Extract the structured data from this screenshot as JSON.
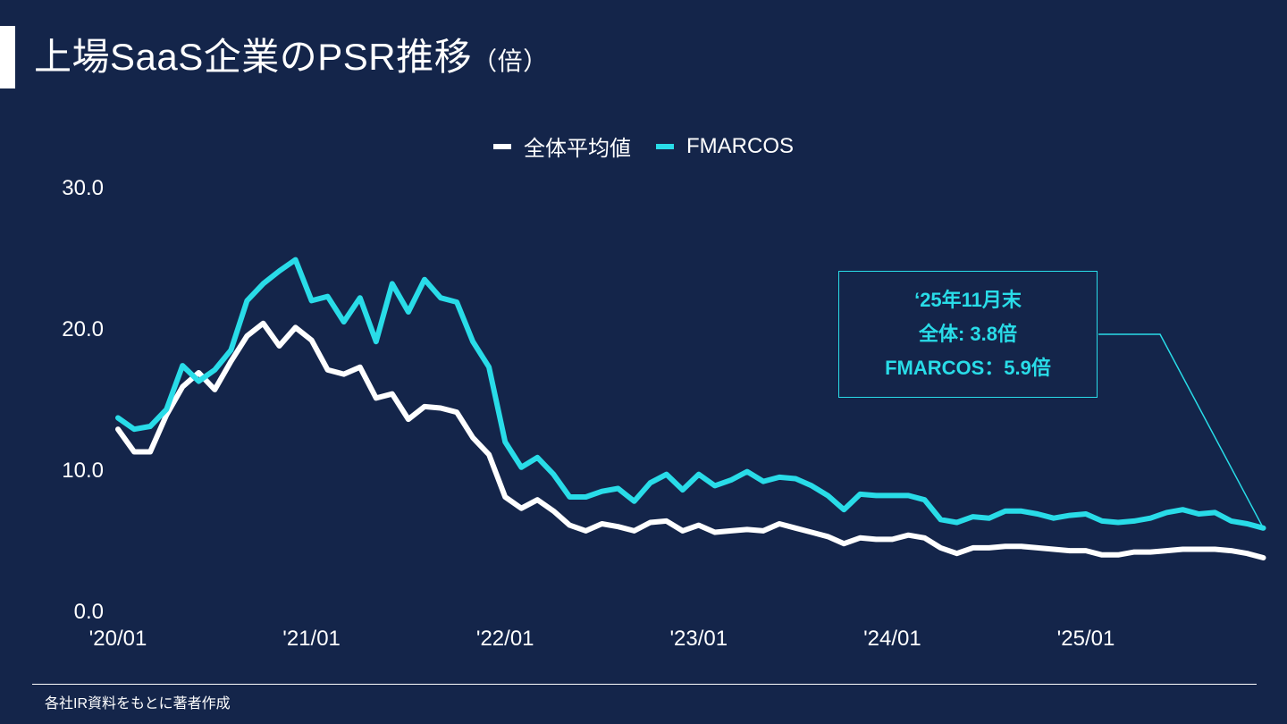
{
  "title": {
    "main": "上場SaaS企業のPSR推移",
    "unit": "（倍）"
  },
  "legend": [
    {
      "label": "全体平均値",
      "color": "#ffffff"
    },
    {
      "label": "FMARCOS",
      "color": "#29dce8"
    }
  ],
  "callout": {
    "line1": "‘25年11月末",
    "line2": "全体: 3.8倍",
    "line3": "FMARCOS：5.9倍"
  },
  "source": "各社IR資料をもとに著者作成",
  "chart_data": {
    "type": "line",
    "title": "上場SaaS企業のPSR推移",
    "ylim": [
      0,
      30
    ],
    "yticks": [
      0,
      10,
      20,
      30
    ],
    "ytick_labels": [
      "0.0",
      "10.0",
      "20.0",
      "30.0"
    ],
    "xtick_labels": [
      "'20/01",
      "'21/01",
      "'22/01",
      "'23/01",
      "'24/01",
      "'25/01"
    ],
    "x_start": "2020-01",
    "x_end": "2025-11",
    "grid": false,
    "legend_position": "top-center",
    "series": [
      {
        "name": "全体平均値",
        "color": "#ffffff",
        "values": [
          12.9,
          11.3,
          11.3,
          13.9,
          15.9,
          16.9,
          15.7,
          17.7,
          19.5,
          20.4,
          18.8,
          20.1,
          19.2,
          17.1,
          16.8,
          17.3,
          15.1,
          15.4,
          13.6,
          14.5,
          14.4,
          14.1,
          12.3,
          11.1,
          8.1,
          7.3,
          7.9,
          7.1,
          6.1,
          5.7,
          6.2,
          6.0,
          5.7,
          6.3,
          6.4,
          5.7,
          6.1,
          5.6,
          5.7,
          5.8,
          5.7,
          6.2,
          5.9,
          5.6,
          5.3,
          4.8,
          5.2,
          5.1,
          5.1,
          5.4,
          5.2,
          4.5,
          4.1,
          4.5,
          4.5,
          4.6,
          4.6,
          4.5,
          4.4,
          4.3,
          4.3,
          4.0,
          4.0,
          4.2,
          4.2,
          4.3,
          4.4,
          4.4,
          4.4,
          4.3,
          4.1,
          3.8
        ]
      },
      {
        "name": "FMARCOS",
        "color": "#29dce8",
        "values": [
          13.7,
          12.9,
          13.1,
          14.3,
          17.4,
          16.3,
          17.1,
          18.5,
          22.0,
          23.2,
          24.1,
          24.9,
          22.0,
          22.3,
          20.5,
          22.2,
          19.1,
          23.2,
          21.2,
          23.5,
          22.2,
          21.9,
          19.1,
          17.3,
          12.0,
          10.2,
          10.9,
          9.7,
          8.1,
          8.1,
          8.5,
          8.7,
          7.8,
          9.1,
          9.7,
          8.6,
          9.7,
          8.9,
          9.3,
          9.9,
          9.2,
          9.5,
          9.4,
          8.9,
          8.2,
          7.2,
          8.3,
          8.2,
          8.2,
          8.2,
          7.9,
          6.5,
          6.3,
          6.7,
          6.6,
          7.1,
          7.1,
          6.9,
          6.6,
          6.8,
          6.9,
          6.4,
          6.3,
          6.4,
          6.6,
          7.0,
          7.2,
          6.9,
          7.0,
          6.4,
          6.2,
          5.9
        ]
      }
    ],
    "annotation": {
      "text_lines": [
        "‘25年11月末",
        "全体: 3.8倍",
        "FMARCOS：5.9倍"
      ],
      "points_to": "2025-11"
    }
  }
}
